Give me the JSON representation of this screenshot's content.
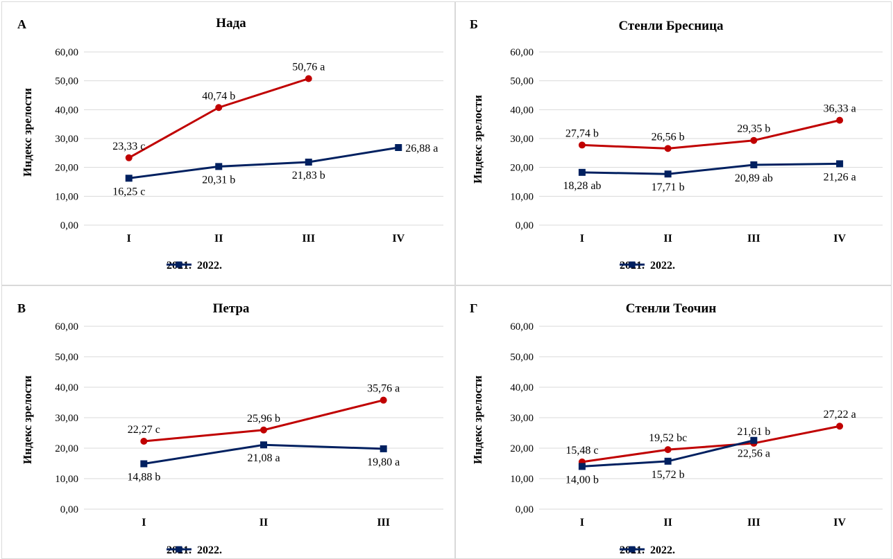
{
  "colors": {
    "series_2021": "#c00000",
    "series_2022": "#002060",
    "grid": "#d9d9d9",
    "text": "#000000"
  },
  "legend": {
    "s2021": "2021.",
    "s2022": "2022."
  },
  "y_label": "Индекс зрелости",
  "chart_data": [
    {
      "type": "line",
      "letter": "А",
      "title": "Нада",
      "ylabel": "Индекс зрелости",
      "ylim": [
        0,
        60
      ],
      "yticks": [
        "0,00",
        "10,00",
        "20,00",
        "30,00",
        "40,00",
        "50,00",
        "60,00"
      ],
      "categories": [
        "I",
        "II",
        "III",
        "IV"
      ],
      "grid": true,
      "legend_position": "bottom",
      "series": [
        {
          "name": "2021.",
          "marker": "circle",
          "values": [
            23.33,
            40.74,
            50.76,
            null
          ],
          "labels": [
            "23,33 c",
            "40,74 b",
            "50,76 a",
            null
          ],
          "label_pos": [
            "above",
            "above",
            "above",
            null
          ]
        },
        {
          "name": "2022.",
          "marker": "square",
          "values": [
            16.25,
            20.31,
            21.83,
            26.88
          ],
          "labels": [
            "16,25 c",
            "20,31 b",
            "21,83 b",
            "26,88 a"
          ],
          "label_pos": [
            "below",
            "below",
            "below",
            "right"
          ]
        }
      ]
    },
    {
      "type": "line",
      "letter": "Б",
      "title": "Стенли Бресница",
      "ylabel": "Индекс зрелости",
      "ylim": [
        0,
        60
      ],
      "yticks": [
        "0,00",
        "10,00",
        "20,00",
        "30,00",
        "40,00",
        "50,00",
        "60,00"
      ],
      "categories": [
        "I",
        "II",
        "III",
        "IV"
      ],
      "grid": true,
      "legend_position": "bottom",
      "series": [
        {
          "name": "2021.",
          "marker": "circle",
          "values": [
            27.74,
            26.56,
            29.35,
            36.33
          ],
          "labels": [
            "27,74 b",
            "26,56 b",
            "29,35 b",
            "36,33 a"
          ],
          "label_pos": [
            "above",
            "above",
            "above",
            "above"
          ]
        },
        {
          "name": "2022.",
          "marker": "square",
          "values": [
            18.28,
            17.71,
            20.89,
            21.26
          ],
          "labels": [
            "18,28 ab",
            "17,71 b",
            "20,89 ab",
            "21,26 a"
          ],
          "label_pos": [
            "below",
            "below",
            "below",
            "below"
          ]
        }
      ]
    },
    {
      "type": "line",
      "letter": "В",
      "title": "Петра",
      "ylabel": "Индекс зрелости",
      "ylim": [
        0,
        60
      ],
      "yticks": [
        "0,00",
        "10,00",
        "20,00",
        "30,00",
        "40,00",
        "50,00",
        "60,00"
      ],
      "categories": [
        "I",
        "II",
        "III"
      ],
      "grid": true,
      "legend_position": "bottom",
      "series": [
        {
          "name": "2021.",
          "marker": "circle",
          "values": [
            22.27,
            25.96,
            35.76
          ],
          "labels": [
            "22,27 c",
            "25,96 b",
            "35,76 a"
          ],
          "label_pos": [
            "above",
            "above",
            "above"
          ]
        },
        {
          "name": "2022.",
          "marker": "square",
          "values": [
            14.88,
            21.08,
            19.8
          ],
          "labels": [
            "14,88 b",
            "21,08 a",
            "19,80 a"
          ],
          "label_pos": [
            "below",
            "below",
            "below"
          ]
        }
      ]
    },
    {
      "type": "line",
      "letter": "Г",
      "title": "Стенли Теочин",
      "ylabel": "Индекс зрелости",
      "ylim": [
        0,
        60
      ],
      "yticks": [
        "0,00",
        "10,00",
        "20,00",
        "30,00",
        "40,00",
        "50,00",
        "60,00"
      ],
      "categories": [
        "I",
        "II",
        "III",
        "IV"
      ],
      "grid": true,
      "legend_position": "bottom",
      "series": [
        {
          "name": "2021.",
          "marker": "circle",
          "values": [
            15.48,
            19.52,
            21.61,
            27.22
          ],
          "labels": [
            "15,48 c",
            "19,52 bc",
            "21,61 b",
            "27,22 a"
          ],
          "label_pos": [
            "above",
            "above",
            "above",
            "above"
          ]
        },
        {
          "name": "2022.",
          "marker": "square",
          "values": [
            14.0,
            15.72,
            22.56,
            null
          ],
          "labels": [
            "14,00 b",
            "15,72 b",
            "22,56 a",
            null
          ],
          "label_pos": [
            "below",
            "below",
            "below",
            null
          ]
        }
      ]
    }
  ]
}
